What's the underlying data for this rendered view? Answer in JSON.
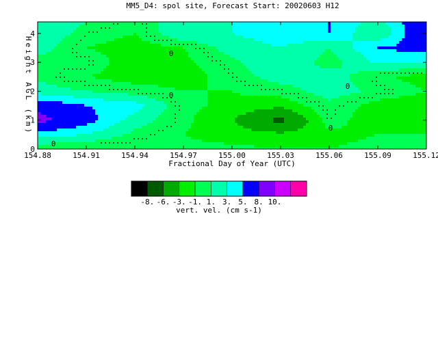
{
  "chart_data": {
    "type": "heatmap",
    "title": "MM5_D4: spol site,  Forecast Start: 20020603 H12",
    "xlabel": "Fractional Day of Year (UTC)",
    "ylabel": "Height AGL (km)",
    "xlim": [
      154.88,
      155.12
    ],
    "ylim": [
      0,
      4.4
    ],
    "x_ticks": [
      "154.88",
      "154.91",
      "154.94",
      "154.97",
      "155.00",
      "155.03",
      "155.06",
      "155.09",
      "155.12"
    ],
    "y_ticks": [
      "0",
      "1",
      "2",
      "3",
      "4"
    ],
    "colorbar": {
      "label": "vert. vel. (cm s-1)",
      "tick_labels": [
        "-8.",
        "-6.",
        "-3.",
        "-1.",
        "1.",
        "3.",
        "5.",
        "8.",
        "10."
      ],
      "colors": [
        "#000000",
        "#005a00",
        "#00aa00",
        "#00ee00",
        "#00ff55",
        "#00ffaa",
        "#00ffff",
        "#0000ff",
        "#7f00ff",
        "#cc00ff",
        "#ff00aa"
      ]
    },
    "contour_label": "0",
    "grid_x": [
      154.88,
      154.91,
      154.94,
      154.97,
      155.0,
      155.03,
      155.06,
      155.09,
      155.12
    ],
    "grid_y": [
      0,
      0.5,
      1,
      1.5,
      2,
      2.5,
      3,
      3.5,
      4,
      4.4
    ],
    "values": [
      [
        -0.5,
        -1,
        -1,
        -0.5,
        -0.5,
        -1,
        -1,
        -0.5,
        -1
      ],
      [
        4,
        3,
        0.5,
        -1,
        -2,
        -2.5,
        -1.5,
        -1,
        -1
      ],
      [
        9,
        6,
        2,
        -0.5,
        -3,
        -7,
        0,
        -2.5,
        -3
      ],
      [
        7,
        5,
        4,
        -0.5,
        -1.5,
        -2.5,
        0.5,
        -2,
        -2.5
      ],
      [
        2,
        1,
        0,
        -1,
        -1,
        0,
        2,
        0.5,
        -1
      ],
      [
        0.5,
        -1,
        -2,
        -2,
        0,
        2,
        2,
        -0.5,
        -2
      ],
      [
        0,
        0.5,
        -2.5,
        -1.5,
        0.5,
        3,
        0,
        3.5,
        3
      ],
      [
        2,
        -1,
        -2,
        -1,
        2,
        3,
        1,
        5,
        6
      ],
      [
        3,
        0,
        -1,
        3,
        3,
        4,
        5,
        1,
        8
      ],
      [
        3,
        1,
        -0.5,
        2.5,
        3,
        5,
        5,
        2,
        8
      ]
    ]
  }
}
